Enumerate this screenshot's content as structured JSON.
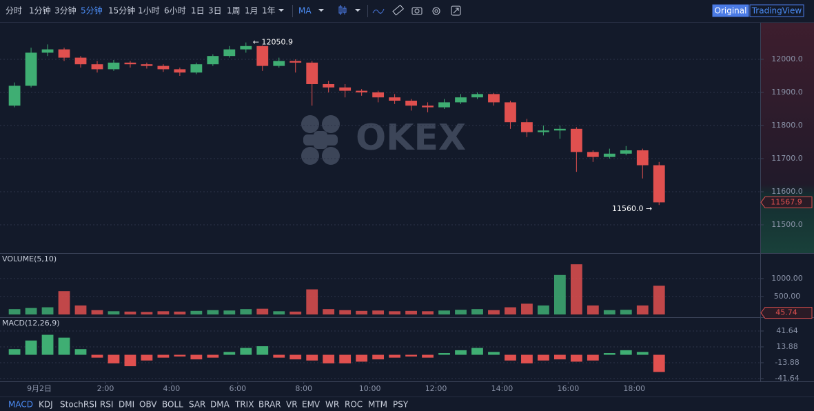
{
  "toolbar": {
    "intervals": [
      "分时",
      "1分钟",
      "3分钟",
      "5分钟",
      "15分钟",
      "1小时",
      "6小时",
      "1日",
      "3日",
      "1周",
      "1月",
      "1年"
    ],
    "active_interval": 3,
    "indicator": "MA",
    "views": [
      "Original",
      "TradingView"
    ],
    "active_view": 0
  },
  "chart_data": {
    "type": "candlestick",
    "watermark": "OKEX",
    "x": [
      -0.75,
      -0.25,
      0.25,
      0.75,
      1.25,
      1.75,
      2.25,
      2.75,
      3.25,
      3.75,
      4.25,
      4.75,
      5.25,
      5.75,
      6.25,
      6.75,
      7.25,
      7.75,
      8.25,
      8.75,
      9.25,
      9.75,
      10.25,
      10.75,
      11.25,
      11.75,
      12.25,
      12.75,
      13.25,
      13.75,
      14.25,
      14.75,
      15.25,
      15.75,
      16.25,
      16.75,
      17.25,
      17.75,
      18.25,
      18.75
    ],
    "open": [
      11860,
      11920,
      12020,
      12030,
      12005,
      11985,
      11970,
      11990,
      11985,
      11980,
      11970,
      11960,
      11985,
      12010,
      12030,
      12040,
      11980,
      11995,
      11990,
      11925,
      11915,
      11905,
      11900,
      11885,
      11875,
      11860,
      11855,
      11870,
      11885,
      11895,
      11870,
      11810,
      11780,
      11785,
      11790,
      11720,
      11705,
      11715,
      11725,
      11680
    ],
    "high": [
      11930,
      12035,
      12045,
      12035,
      12010,
      11995,
      11998,
      11995,
      11990,
      11985,
      11975,
      11990,
      12015,
      12040,
      12050.9,
      12042,
      12005,
      12000,
      11995,
      11935,
      11925,
      11910,
      11905,
      11895,
      11880,
      11870,
      11880,
      11895,
      11900,
      11898,
      11875,
      11820,
      11800,
      11800,
      11795,
      11725,
      11730,
      11738,
      11730,
      11690
    ],
    "low": [
      11855,
      11915,
      12010,
      11995,
      11975,
      11960,
      11965,
      11975,
      11972,
      11962,
      11950,
      11955,
      11980,
      12005,
      12020,
      11965,
      11975,
      11960,
      11860,
      11900,
      11885,
      11890,
      11870,
      11865,
      11845,
      11840,
      11850,
      11865,
      11880,
      11860,
      11790,
      11765,
      11770,
      11760,
      11660,
      11690,
      11700,
      11710,
      11640,
      11560.0
    ],
    "close": [
      11920,
      12020,
      12030,
      12005,
      11985,
      11970,
      11990,
      11985,
      11980,
      11970,
      11960,
      11985,
      12010,
      12030,
      12040,
      11980,
      11995,
      11990,
      11925,
      11915,
      11905,
      11900,
      11885,
      11875,
      11860,
      11855,
      11870,
      11885,
      11895,
      11870,
      11810,
      11780,
      11785,
      11790,
      11720,
      11705,
      11715,
      11725,
      11680,
      11567.9
    ],
    "up_color": "#3fae73",
    "down_color": "#e0504f",
    "xlim": [
      -1.19,
      21.81
    ],
    "xticks": [
      {
        "value": 0,
        "label": "9月2日"
      },
      {
        "value": 2,
        "label": "2:00"
      },
      {
        "value": 4,
        "label": "4:00"
      },
      {
        "value": 6,
        "label": "6:00"
      },
      {
        "value": 8,
        "label": "8:00"
      },
      {
        "value": 10,
        "label": "10:00"
      },
      {
        "value": 12,
        "label": "12:00"
      },
      {
        "value": 14,
        "label": "14:00"
      },
      {
        "value": 16,
        "label": "16:00"
      },
      {
        "value": 18,
        "label": "18:00"
      }
    ],
    "ylim": [
      11414.6,
      12110.4
    ],
    "yticks": [
      {
        "value": 11500,
        "label": "11500.0"
      },
      {
        "value": 11600,
        "label": "11600.0"
      },
      {
        "value": 11700,
        "label": "11700.0"
      },
      {
        "value": 11800,
        "label": "11800.0"
      },
      {
        "value": 11900,
        "label": "11900.0"
      },
      {
        "value": 12000,
        "label": "12000.0"
      }
    ],
    "grid": true,
    "high_annotation": "← 12050.9",
    "low_annotation": "11560.0 →",
    "last_price": 11567.9,
    "volume": {
      "title": "VOLUME(5,10)",
      "values": [
        150,
        180,
        200,
        650,
        250,
        120,
        90,
        80,
        70,
        90,
        80,
        100,
        120,
        110,
        150,
        160,
        90,
        80,
        700,
        150,
        120,
        100,
        110,
        90,
        100,
        90,
        110,
        130,
        150,
        120,
        200,
        300,
        250,
        1100,
        1400,
        250,
        120,
        130,
        250,
        800
      ],
      "ylim": [
        -77,
        1692
      ],
      "yticks": [
        {
          "value": 500,
          "label": "500.00"
        },
        {
          "value": 1000,
          "label": "1000.00"
        }
      ],
      "last": 45.74
    },
    "macd": {
      "title": "MACD(12,26,9)",
      "values": [
        10,
        25,
        35,
        30,
        10,
        -5,
        -15,
        -20,
        -10,
        -5,
        -3,
        -8,
        -5,
        5,
        12,
        15,
        -5,
        -8,
        -10,
        -15,
        -15,
        -12,
        -8,
        -5,
        -3,
        -5,
        3,
        8,
        12,
        5,
        -10,
        -15,
        -10,
        -8,
        -12,
        -10,
        3,
        8,
        5,
        -30
      ],
      "ylim": [
        -46.47,
        64.57
      ],
      "yticks": [
        -41.64,
        -13.88,
        13.88,
        41.64
      ]
    }
  },
  "indicator_tabs": {
    "items": [
      "MACD",
      "KDJ",
      "StochRSI",
      "RSI",
      "DMI",
      "OBV",
      "BOLL",
      "SAR",
      "DMA",
      "TRIX",
      "BRAR",
      "VR",
      "EMV",
      "WR",
      "ROC",
      "MTM",
      "PSY"
    ],
    "active": 0
  }
}
